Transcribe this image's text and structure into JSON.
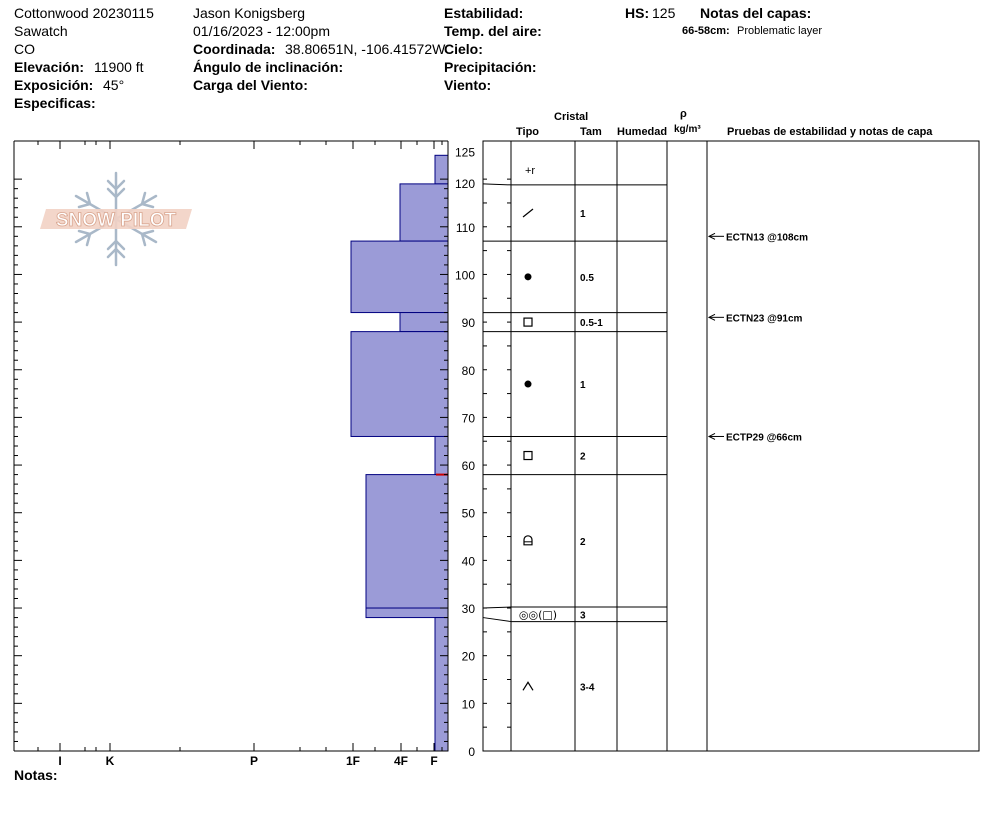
{
  "header": {
    "col1": {
      "title": "Cottonwood 20230115",
      "range": "Sawatch",
      "state": "CO",
      "elevation_label": "Elevación:",
      "elevation_value": "11900 ft",
      "aspect_label": "Exposición:",
      "aspect_value": "45°",
      "specifics_label": "Especificas:"
    },
    "col2": {
      "observer": "Jason Konigsberg",
      "datetime": "01/16/2023 - 12:00pm",
      "coord_label": "Coordinada:",
      "coord_value": "38.80651N, -106.41572W",
      "incline_label": "Ángulo de inclinación:",
      "wind_load_label": "Carga del Viento:"
    },
    "col3": {
      "stability_label": "Estabilidad:",
      "air_temp_label": "Temp. del aire:",
      "sky_label": "Cielo:",
      "precip_label": "Precipitación:",
      "wind_label": "Viento:"
    },
    "hs_label": "HS:",
    "hs_value": "125",
    "layer_notes_label": "Notas del capas:",
    "layer_note_range": "66-58cm:",
    "layer_note_text": "Problematic layer"
  },
  "logo_text": "SNOW PILOT",
  "notes_label": "Notas:",
  "table_headers": {
    "crystal": "Cristal",
    "type": "Tipo",
    "size": "Tam",
    "moisture": "Humedad",
    "rho": "ρ",
    "density_unit": "kg/m³",
    "tests": "Pruebas de estabilidad y notas de capa"
  },
  "colors": {
    "hardness_fill": "#9b9bd7",
    "hardness_stroke": "#000080",
    "layer_note_line": "#cc0000"
  },
  "chart_data": {
    "type": "bar",
    "orientation": "horizontal-profile",
    "title": "",
    "ylabel": "",
    "y_range": [
      0,
      125
    ],
    "y_ticks": [
      0,
      10,
      20,
      30,
      40,
      50,
      60,
      70,
      80,
      90,
      100,
      110,
      120,
      125
    ],
    "hardness_ticks": [
      {
        "label": "I",
        "value": 1
      },
      {
        "label": "K",
        "value": 2
      },
      {
        "label": "P",
        "value": 3
      },
      {
        "label": "1F",
        "value": 4
      },
      {
        "label": "4F",
        "value": 5
      },
      {
        "label": "F",
        "value": 6
      }
    ],
    "hardness_range": [
      0,
      6.3
    ],
    "layers": [
      {
        "top": 125,
        "bottom": 119,
        "hardness": "F",
        "grain": "+r",
        "size": "",
        "moisture": ""
      },
      {
        "top": 119,
        "bottom": 107,
        "hardness": "4F",
        "grain": "/",
        "size": "1",
        "moisture": ""
      },
      {
        "top": 107,
        "bottom": 92,
        "hardness": "1F",
        "grain": "●",
        "size": "0.5",
        "moisture": ""
      },
      {
        "top": 92,
        "bottom": 88,
        "hardness": "4F",
        "grain": "□",
        "size": "0.5-1",
        "moisture": ""
      },
      {
        "top": 88,
        "bottom": 66,
        "hardness": "1F",
        "grain": "●",
        "size": "1",
        "moisture": ""
      },
      {
        "top": 66,
        "bottom": 58,
        "hardness": "F",
        "grain": "□",
        "size": "2",
        "moisture": ""
      },
      {
        "top": 58,
        "bottom": 30,
        "hardness": "1F-",
        "grain": "crust",
        "size": "2",
        "moisture": ""
      },
      {
        "top": 30,
        "bottom": 28,
        "hardness": "1F-",
        "grain": "◎◎(□)",
        "size": "3",
        "moisture": ""
      },
      {
        "top": 28,
        "bottom": 0,
        "hardness": "F",
        "grain": "∧",
        "size": "3-4",
        "moisture": ""
      }
    ],
    "stability_tests": [
      {
        "label": "ECTN13 @108cm",
        "depth": 108
      },
      {
        "label": "ECTN23 @91cm",
        "depth": 91
      },
      {
        "label": "ECTP29 @66cm",
        "depth": 66
      }
    ]
  }
}
